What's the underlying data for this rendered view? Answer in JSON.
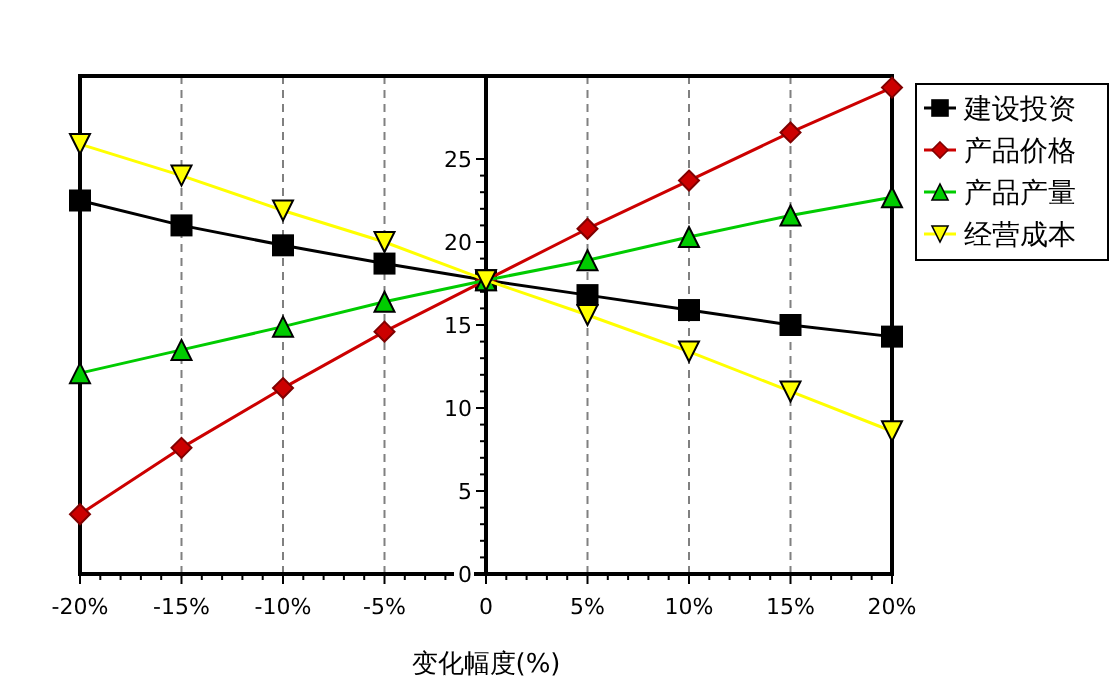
{
  "chart_data": {
    "type": "line",
    "xlabel": "变化幅度(%)",
    "x": [
      -20,
      -15,
      -10,
      -5,
      0,
      5,
      10,
      15,
      20
    ],
    "series": [
      {
        "name": "建设投资",
        "color": "#000000",
        "marker": "square",
        "values": [
          22.5,
          21.0,
          19.8,
          18.7,
          17.7,
          16.8,
          15.9,
          15.0,
          14.3
        ]
      },
      {
        "name": "产品价格",
        "color": "#cc0000",
        "marker": "diamond",
        "values": [
          3.6,
          7.6,
          11.2,
          14.6,
          17.7,
          20.8,
          23.7,
          26.6,
          29.3
        ]
      },
      {
        "name": "产品产量",
        "color": "#00cc00",
        "marker": "triangle",
        "values": [
          12.1,
          13.5,
          14.9,
          16.4,
          17.7,
          18.9,
          20.3,
          21.6,
          22.7
        ]
      },
      {
        "name": "经营成本",
        "color": "#ffff00",
        "marker": "triangle-down",
        "values": [
          25.9,
          24.0,
          21.9,
          20.0,
          17.7,
          15.6,
          13.4,
          11.0,
          8.6
        ]
      }
    ],
    "xlim": [
      -20,
      20
    ],
    "ylim": [
      0,
      30
    ],
    "xticks": [
      {
        "value": -20,
        "label": "-20%"
      },
      {
        "value": -15,
        "label": "-15%"
      },
      {
        "value": -10,
        "label": "-10%"
      },
      {
        "value": -5,
        "label": "-5%"
      },
      0,
      {
        "value": 5,
        "label": "5%"
      },
      {
        "value": 10,
        "label": "10%"
      },
      {
        "value": 15,
        "label": "15%"
      },
      {
        "value": 20,
        "label": "20%"
      }
    ],
    "yticks": [
      0,
      5,
      10,
      15,
      20,
      25
    ],
    "grid": "x",
    "legend": "right",
    "line_style": "solid"
  }
}
